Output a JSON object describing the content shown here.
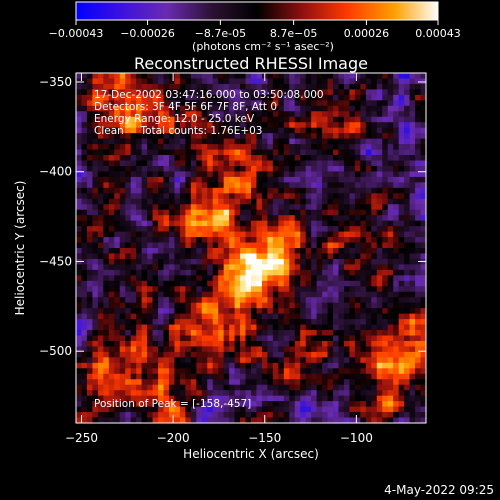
{
  "chart_data": {
    "type": "heatmap",
    "title": "Reconstructed RHESSI Image",
    "xlabel": "Heliocentric X (arcsec)",
    "ylabel": "Heliocentric Y (arcsec)",
    "xlim": [
      -253,
      -62
    ],
    "ylim": [
      -540,
      -345
    ],
    "x_ticks": [
      -250,
      -200,
      -150,
      -100
    ],
    "y_ticks": [
      -350,
      -400,
      -450,
      -500
    ],
    "colorbar": {
      "range": [
        -0.00043,
        0.00043
      ],
      "ticks": [
        {
          "value": -0.00043,
          "label": "-0.00043"
        },
        {
          "value": -0.00026,
          "label": "-0.00026"
        },
        {
          "value": -8.7e-05,
          "label": "-8.7e-05"
        },
        {
          "value": 8.7e-05,
          "label": "8.7e-05"
        },
        {
          "value": 0.00026,
          "label": "0.00026"
        },
        {
          "value": 0.00043,
          "label": "0.00043"
        }
      ],
      "units": "(photons cm⁻² s⁻¹ asec⁻²)"
    },
    "annotations": [
      "17-Dec-2002 03:47:16.000 to 03:50:08.000",
      "Detectors: 3F 4F 5F 6F 7F 8F, Att 0",
      "Energy Range: 12.0 - 25.0 keV",
      "Clean     Total counts: 1.76E+03"
    ],
    "peak_label": "Position of Peak = [-158,-457]",
    "peak": [
      -158,
      -457
    ],
    "sources": [
      {
        "x": -158,
        "y": -457,
        "value": 0.00043
      },
      {
        "x": -183,
        "y": -428,
        "value": 0.00036
      },
      {
        "x": -165,
        "y": -395,
        "value": 0.0003
      },
      {
        "x": -140,
        "y": -440,
        "value": 0.00028
      },
      {
        "x": -178,
        "y": -490,
        "value": 0.0003
      },
      {
        "x": -232,
        "y": -360,
        "value": 0.00026
      },
      {
        "x": -212,
        "y": -370,
        "value": 0.00026
      },
      {
        "x": -115,
        "y": -372,
        "value": 0.00024
      },
      {
        "x": -225,
        "y": -500,
        "value": 0.00022
      },
      {
        "x": -130,
        "y": -505,
        "value": 0.00022
      },
      {
        "x": -90,
        "y": -500,
        "value": 0.00022
      },
      {
        "x": -70,
        "y": -490,
        "value": 0.0002
      },
      {
        "x": -80,
        "y": -530,
        "value": 0.00022
      },
      {
        "x": -208,
        "y": -525,
        "value": 0.0002
      },
      {
        "x": -245,
        "y": -520,
        "value": 0.00018
      },
      {
        "x": -95,
        "y": -432,
        "value": 0.00016
      },
      {
        "x": -240,
        "y": -420,
        "value": 0.00014
      }
    ],
    "colors": {
      "background": "#000000",
      "colormap": [
        "#0000ff",
        "#5a1fd0",
        "#6a2bb0",
        "#000000",
        "#9e1414",
        "#ff3a00",
        "#ff9a00",
        "#ffe680",
        "#ffffff"
      ]
    }
  },
  "footer": {
    "timestamp": "4-May-2022 09:25"
  }
}
